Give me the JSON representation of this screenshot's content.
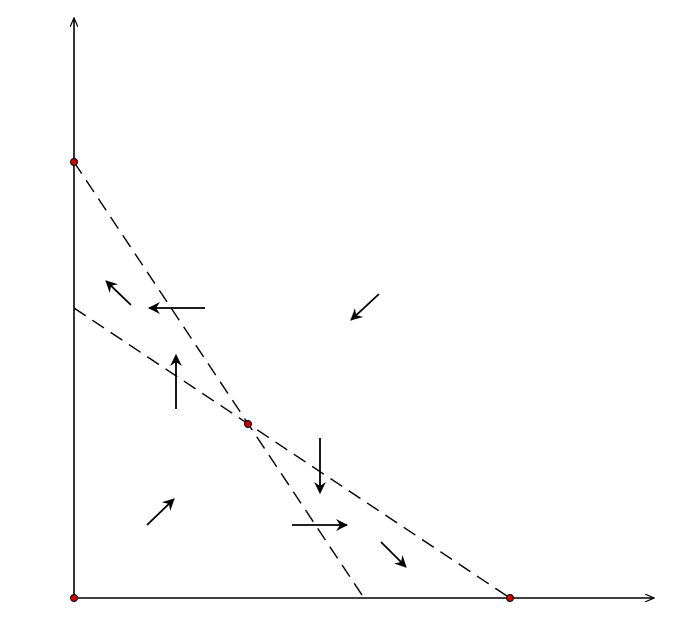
{
  "diagram": {
    "type": "phase-portrait",
    "background_color": "#ffffff",
    "line_color": "#000000",
    "point_color": "#cc0000",
    "axes": {
      "x_axis": true,
      "y_axis": true
    },
    "nullclines": [
      {
        "name": "nullcline-steep",
        "style": "dashed",
        "from": "y-intercept-upper",
        "to": "x-axis-mid"
      },
      {
        "name": "nullcline-shallow",
        "style": "dashed",
        "from": "y-axis-mid",
        "to": "x-intercept-right"
      }
    ],
    "equilibria": [
      "origin",
      "y-intercept-upper",
      "interior",
      "x-intercept-right"
    ],
    "vector_field": [
      {
        "region": "upper-left",
        "direction": "up-left"
      },
      {
        "region": "upper-left-band",
        "direction": "left"
      },
      {
        "region": "upper-right",
        "direction": "down-left"
      },
      {
        "region": "left-wedge",
        "direction": "up"
      },
      {
        "region": "right-wedge",
        "direction": "down"
      },
      {
        "region": "lower-left",
        "direction": "up-right"
      },
      {
        "region": "lower-wedge",
        "direction": "right"
      },
      {
        "region": "lower-right",
        "direction": "down-right"
      }
    ]
  }
}
